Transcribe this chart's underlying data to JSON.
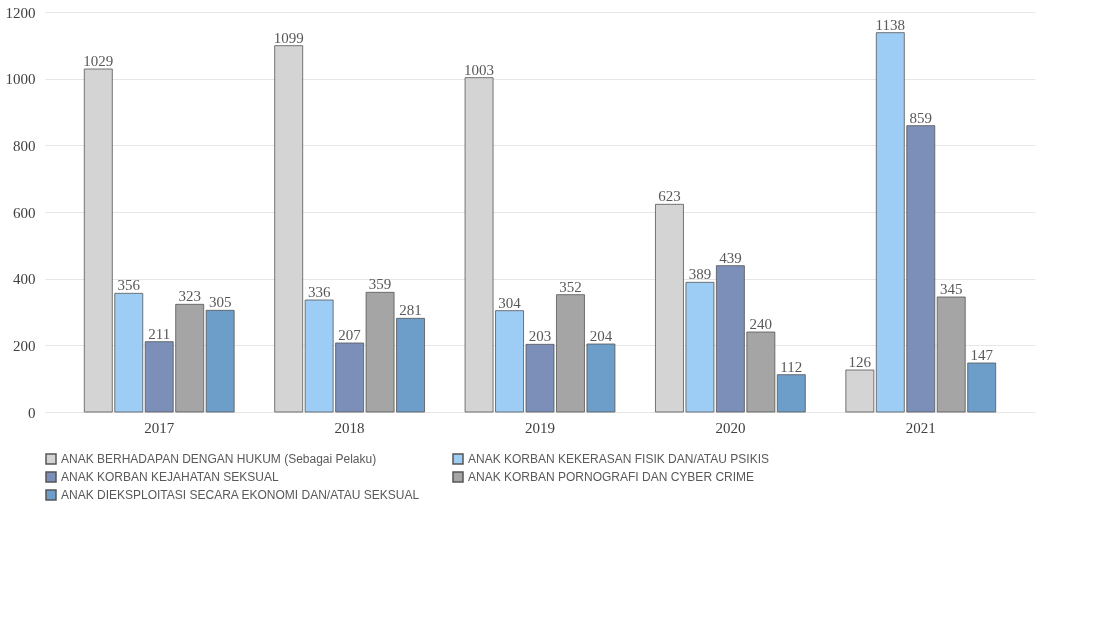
{
  "chart_data": {
    "type": "bar",
    "categories": [
      "2017",
      "2018",
      "2019",
      "2020",
      "2021"
    ],
    "series": [
      {
        "name": "ANAK BERHADAPAN DENGAN HUKUM (Sebagai Pelaku)",
        "color": "#d4d4d4",
        "values": [
          1029,
          1099,
          1003,
          623,
          126
        ]
      },
      {
        "name": "ANAK KORBAN KEKERASAN FISIK DAN/ATAU PSIKIS",
        "color": "#9dcdf5",
        "values": [
          356,
          336,
          304,
          389,
          1138
        ]
      },
      {
        "name": "ANAK KORBAN KEJAHATAN SEKSUAL",
        "color": "#7b8fb9",
        "values": [
          211,
          207,
          203,
          439,
          859
        ]
      },
      {
        "name": "ANAK KORBAN PORNOGRAFI DAN CYBER CRIME",
        "color": "#a5a5a5",
        "values": [
          323,
          359,
          352,
          240,
          345
        ]
      },
      {
        "name": "ANAK DIEKSPLOITASI SECARA EKONOMI DAN/ATAU SEKSUAL",
        "color": "#6d9dc9",
        "values": [
          305,
          281,
          204,
          112,
          147
        ]
      }
    ],
    "ylim": [
      0,
      1200
    ],
    "yticks": [
      0,
      200,
      400,
      600,
      800,
      1000,
      1200
    ],
    "grid": "y",
    "legend": "bottom",
    "data_labels": true
  }
}
